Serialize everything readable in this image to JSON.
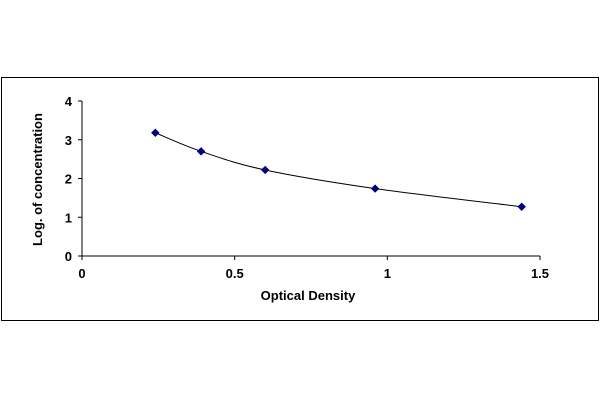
{
  "chart_data": {
    "type": "line",
    "title": "",
    "xlabel": "Optical Density",
    "ylabel": "Log. of concentration",
    "xlim": [
      0,
      1.5
    ],
    "ylim": [
      0,
      4
    ],
    "x_ticks": [
      0,
      0.5,
      1,
      1.5
    ],
    "x_tick_labels": [
      "0",
      "0.5",
      "1",
      "1.5"
    ],
    "y_ticks": [
      0,
      1,
      2,
      3,
      4
    ],
    "y_tick_labels": [
      "0",
      "1",
      "2",
      "3",
      "4"
    ],
    "grid": false,
    "legend": "none",
    "x": [
      0.24,
      0.39,
      0.6,
      0.96,
      1.44
    ],
    "y": [
      3.18,
      2.7,
      2.22,
      1.74,
      1.27
    ],
    "colors": {
      "point": "#000080",
      "line": "#000000",
      "axis": "#000000"
    }
  }
}
